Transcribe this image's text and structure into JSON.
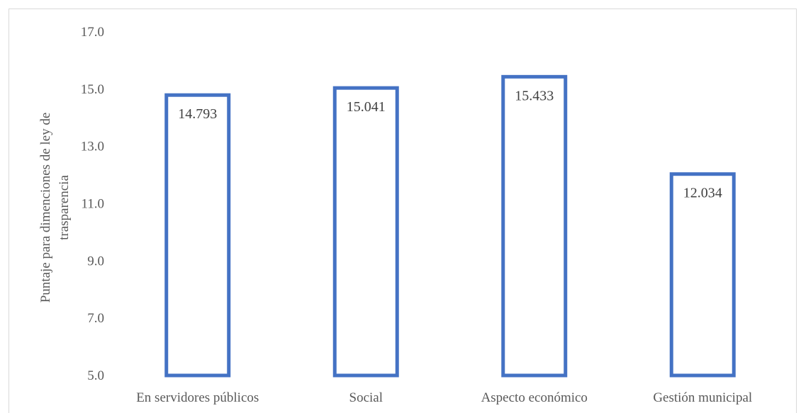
{
  "chart_data": {
    "type": "bar",
    "title": "",
    "xlabel": "",
    "ylabel": "Puntaje para dimenciones de ley de trasparencia",
    "ylabel_lines": [
      "Puntaje para dimenciones de ley de",
      "trasparencia"
    ],
    "categories": [
      "En servidores públicos",
      "Social",
      "Aspecto económico",
      "Gestión municipal"
    ],
    "values": [
      14.793,
      15.041,
      15.433,
      12.034
    ],
    "value_labels": [
      "14.793",
      "15.041",
      "15.433",
      "12.034"
    ],
    "ylim": [
      5.0,
      17.0
    ],
    "yticks": [
      5.0,
      7.0,
      9.0,
      11.0,
      13.0,
      15.0,
      17.0
    ],
    "ytick_labels": [
      "5.0",
      "7.0",
      "9.0",
      "11.0",
      "13.0",
      "15.0",
      "17.0"
    ],
    "grid": false,
    "legend": "none",
    "bar_style": "outline",
    "colors": {
      "bar_stroke": "#4472c4",
      "bar_fill": "#ffffff",
      "text": "#595959",
      "value_text": "#404040",
      "frame": "#d9d9d9"
    }
  }
}
